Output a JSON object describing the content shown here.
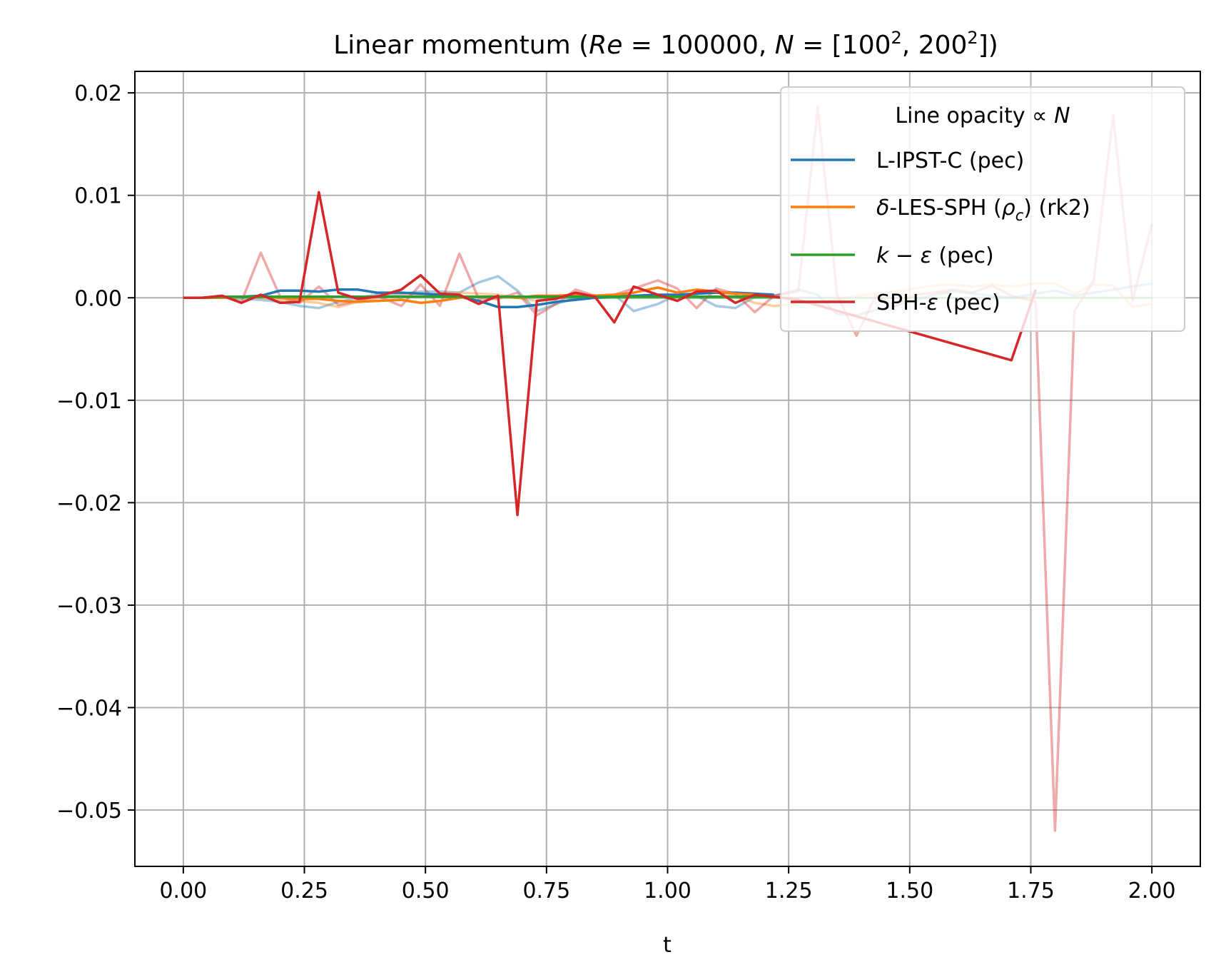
{
  "chart_data": {
    "type": "line",
    "title": {
      "prefix": "Linear momentum",
      "re_label": "Re",
      "re_value": "100000",
      "n_label": "N",
      "n_values": [
        "100",
        "200"
      ],
      "n_exponent": "2"
    },
    "xlabel": "t",
    "ylabel": "",
    "xlim": [
      -0.1,
      2.1
    ],
    "ylim": [
      -0.0555,
      0.0221
    ],
    "xticks": [
      0.0,
      0.25,
      0.5,
      0.75,
      1.0,
      1.25,
      1.5,
      1.75,
      2.0
    ],
    "xtick_labels": [
      "0.00",
      "0.25",
      "0.50",
      "0.75",
      "1.00",
      "1.25",
      "1.50",
      "1.75",
      "2.00"
    ],
    "yticks": [
      0.02,
      0.01,
      0.0,
      -0.01,
      -0.02,
      -0.03,
      -0.04,
      -0.05
    ],
    "ytick_labels": [
      "0.02",
      "0.01",
      "0.00",
      "−0.01",
      "−0.02",
      "−0.03",
      "−0.04",
      "−0.05"
    ],
    "grid": true,
    "legend": {
      "title": "Line opacity  ∝  N",
      "placement": "top-right"
    },
    "series": [
      {
        "name": "L-IPST-C (pec)",
        "color": "#1f77b4",
        "opacity_legend": 1.0,
        "runs": [
          {
            "N": "100²",
            "opacity": 1.0,
            "x": [
              0.0,
              0.04,
              0.08,
              0.12,
              0.16,
              0.2,
              0.24,
              0.28,
              0.32,
              0.36,
              0.4,
              0.45,
              0.49,
              0.53,
              0.57,
              0.61,
              0.65,
              0.69,
              0.73,
              0.77,
              0.81,
              0.85,
              0.89,
              0.93,
              0.98,
              1.02,
              1.06,
              1.1,
              1.14,
              1.18,
              1.22
            ],
            "y": [
              0.0,
              0.0,
              0.0001,
              0.0001,
              0.0002,
              0.0007,
              0.0007,
              0.0006,
              0.0008,
              0.0008,
              0.0005,
              0.0005,
              0.0004,
              0.0003,
              0.0001,
              -0.0003,
              -0.0009,
              -0.0009,
              -0.0007,
              -0.0004,
              -0.0002,
              0.0,
              0.0001,
              0.0002,
              0.0003,
              0.0003,
              0.0004,
              0.0005,
              0.0005,
              0.0004,
              0.0003
            ]
          },
          {
            "N": "200²",
            "opacity": 0.4,
            "x": [
              0.0,
              0.04,
              0.08,
              0.12,
              0.16,
              0.2,
              0.24,
              0.28,
              0.32,
              0.36,
              0.4,
              0.45,
              0.49,
              0.53,
              0.57,
              0.61,
              0.65,
              0.69,
              0.73,
              0.77,
              0.81,
              0.85,
              0.89,
              0.93,
              0.98,
              1.02,
              1.06,
              1.1,
              1.14,
              1.18,
              1.22,
              1.27,
              1.31,
              1.35,
              1.39,
              1.43,
              1.47,
              1.51,
              1.55,
              1.59,
              1.63,
              1.67,
              1.71,
              1.76,
              1.8,
              1.84,
              1.88,
              1.92,
              1.96,
              2.0
            ],
            "y": [
              0.0,
              0.0,
              0.0001,
              -0.0001,
              -0.0002,
              -0.0004,
              -0.0008,
              -0.001,
              -0.0004,
              0.0,
              0.0003,
              0.0004,
              0.0006,
              0.0006,
              0.0005,
              0.0015,
              0.0021,
              0.0007,
              -0.0013,
              -0.0006,
              0.0,
              0.0002,
              0.0003,
              -0.0013,
              -0.0006,
              0.0003,
              0.0002,
              -0.0008,
              -0.001,
              0.0001,
              0.0002,
              0.0008,
              0.0003,
              -0.0016,
              -0.0017,
              -0.0012,
              -0.0008,
              -0.0003,
              0.0003,
              0.0006,
              0.0004,
              0.0002,
              0.0,
              0.0004,
              0.0007,
              0.0002,
              0.0005,
              0.0008,
              0.0011,
              0.0014
            ]
          }
        ]
      },
      {
        "name": "δ-LES-SPH (ρc) (rk2)",
        "color": "#ff7f0e",
        "opacity_legend": 1.0,
        "runs": [
          {
            "N": "100²",
            "opacity": 1.0,
            "x": [
              0.0,
              0.04,
              0.08,
              0.12,
              0.16,
              0.2,
              0.24,
              0.28,
              0.32,
              0.36,
              0.4,
              0.45,
              0.49,
              0.53,
              0.57,
              0.61,
              0.65,
              0.69,
              0.73,
              0.77,
              0.81,
              0.85,
              0.89,
              0.93,
              0.98,
              1.02,
              1.06,
              1.1,
              1.14,
              1.18,
              1.22
            ],
            "y": [
              0.0,
              0.0,
              0.0,
              0.0001,
              0.0001,
              0.0,
              -0.0001,
              -0.0001,
              -0.0003,
              -0.0004,
              -0.0003,
              -0.0002,
              -0.0005,
              -0.0003,
              0.0,
              0.0001,
              0.0001,
              0.0,
              0.0002,
              0.0002,
              0.0003,
              0.0002,
              0.0003,
              0.0005,
              0.001,
              0.0005,
              0.0008,
              0.0006,
              0.0004,
              0.0003,
              0.0001
            ]
          },
          {
            "N": "200²",
            "opacity": 0.4,
            "x": [
              0.0,
              0.04,
              0.08,
              0.12,
              0.16,
              0.2,
              0.24,
              0.28,
              0.32,
              0.36,
              0.4,
              0.45,
              0.49,
              0.53,
              0.57,
              0.61,
              0.65,
              0.69,
              0.73,
              0.77,
              0.81,
              0.85,
              0.89,
              0.93,
              0.98,
              1.02,
              1.06,
              1.1,
              1.14,
              1.18,
              1.22,
              1.27,
              1.31,
              1.35,
              1.39,
              1.43,
              1.47,
              1.51,
              1.55,
              1.59,
              1.63,
              1.67,
              1.71,
              1.76,
              1.8,
              1.84,
              1.88,
              1.92,
              1.96,
              2.0
            ],
            "y": [
              0.0,
              0.0,
              0.0001,
              0.0001,
              0.0,
              -0.0002,
              -0.0003,
              -0.0005,
              -0.0009,
              -0.0004,
              0.0,
              0.0002,
              0.0003,
              0.0004,
              0.0005,
              0.0004,
              0.0003,
              0.0,
              -0.0003,
              0.0,
              0.0004,
              0.0002,
              0.0003,
              0.0001,
              0.0002,
              0.0001,
              0.0004,
              0.0005,
              0.0002,
              -0.0005,
              -0.0008,
              -0.0006,
              -0.0004,
              -0.0002,
              0.0002,
              0.0004,
              0.0006,
              0.0009,
              0.0012,
              0.0013,
              0.0011,
              0.0013,
              0.0011,
              0.0014,
              0.0014,
              0.0004,
              0.0013,
              0.0012,
              -0.0009,
              -0.0006
            ]
          }
        ]
      },
      {
        "name": "k − ε (pec)",
        "color": "#2ca02c",
        "opacity_legend": 1.0,
        "runs": [
          {
            "N": "100²",
            "opacity": 1.0,
            "x": [
              0.0,
              0.04,
              0.08,
              0.12,
              0.16,
              0.2,
              0.24,
              0.28,
              0.32,
              0.36,
              0.4,
              0.45,
              0.49,
              0.53,
              0.57,
              0.61,
              0.65,
              0.69,
              0.73,
              0.77,
              0.81,
              0.85,
              0.89,
              0.93,
              0.98,
              1.02,
              1.06,
              1.1,
              1.14,
              1.18,
              1.22
            ],
            "y": [
              0.0,
              0.0,
              0.0001,
              0.0001,
              0.0001,
              0.0001,
              0.0001,
              0.0001,
              0.0001,
              0.0001,
              0.0001,
              0.0001,
              0.0001,
              0.0001,
              0.0001,
              0.0001,
              0.0001,
              0.0001,
              0.0001,
              0.0001,
              0.0001,
              0.0001,
              0.0001,
              0.0001,
              0.0001,
              0.0001,
              0.0001,
              0.0001,
              0.0001,
              0.0001,
              0.0001
            ]
          },
          {
            "N": "200²",
            "opacity": 0.4,
            "x": [
              0.0,
              0.25,
              0.5,
              0.75,
              1.0,
              1.25,
              1.5,
              1.75,
              2.0
            ],
            "y": [
              0.0,
              0.0001,
              0.0001,
              0.0,
              0.0,
              0.0,
              0.0,
              0.0,
              0.0
            ]
          }
        ]
      },
      {
        "name": "SPH-ε (pec)",
        "color": "#d62728",
        "opacity_legend": 1.0,
        "runs": [
          {
            "N": "100²",
            "opacity": 1.0,
            "x": [
              0.0,
              0.04,
              0.08,
              0.12,
              0.16,
              0.2,
              0.24,
              0.28,
              0.32,
              0.36,
              0.4,
              0.45,
              0.49,
              0.53,
              0.57,
              0.61,
              0.65,
              0.69,
              0.73,
              0.77,
              0.81,
              0.85,
              0.89,
              0.93,
              0.98,
              1.02,
              1.06,
              1.1,
              1.14,
              1.18,
              1.22,
              1.27,
              1.71,
              1.76
            ],
            "y": [
              0.0,
              0.0,
              0.0002,
              -0.0005,
              0.0003,
              -0.0005,
              -0.0004,
              0.0103,
              0.0005,
              -0.0001,
              0.0001,
              0.0008,
              0.0022,
              0.0004,
              0.0003,
              -0.0006,
              0.0002,
              -0.0212,
              -0.0003,
              -0.0001,
              0.0005,
              0.0001,
              -0.0024,
              0.0011,
              0.0003,
              -0.0003,
              0.0006,
              0.0007,
              -0.0005,
              0.0003,
              0.0001,
              -0.0002,
              -0.0061,
              0.0008
            ]
          },
          {
            "N": "200²",
            "opacity": 0.4,
            "x": [
              0.0,
              0.04,
              0.08,
              0.12,
              0.16,
              0.2,
              0.24,
              0.28,
              0.32,
              0.36,
              0.4,
              0.45,
              0.49,
              0.53,
              0.57,
              0.61,
              0.65,
              0.69,
              0.73,
              0.77,
              0.81,
              0.85,
              0.89,
              0.93,
              0.98,
              1.02,
              1.06,
              1.1,
              1.14,
              1.18,
              1.22,
              1.27,
              1.31,
              1.35,
              1.39,
              1.43,
              1.47,
              1.51,
              1.55,
              1.59,
              1.63,
              1.67,
              1.71,
              1.76,
              1.8,
              1.84,
              1.88,
              1.92,
              1.96,
              2.0
            ],
            "y": [
              0.0,
              0.0,
              0.0002,
              -0.0004,
              0.0044,
              0.0001,
              -0.0005,
              0.0011,
              -0.0007,
              -0.0003,
              0.0002,
              -0.0008,
              0.0013,
              -0.0008,
              0.0043,
              -0.0001,
              -0.0001,
              0.0005,
              -0.0017,
              -0.0006,
              0.0008,
              0.0002,
              0.0003,
              0.0009,
              0.0017,
              0.0009,
              -0.001,
              0.0009,
              0.0004,
              -0.0014,
              0.0002,
              0.0006,
              0.0186,
              0.0003,
              -0.0037,
              0.0002,
              -0.0008,
              0.0003,
              0.0005,
              0.0008,
              0.0005,
              0.0012,
              0.0002,
              -0.0004,
              -0.052,
              -0.0013,
              0.0017,
              0.0178,
              -0.0003,
              0.0072
            ]
          }
        ]
      }
    ]
  }
}
